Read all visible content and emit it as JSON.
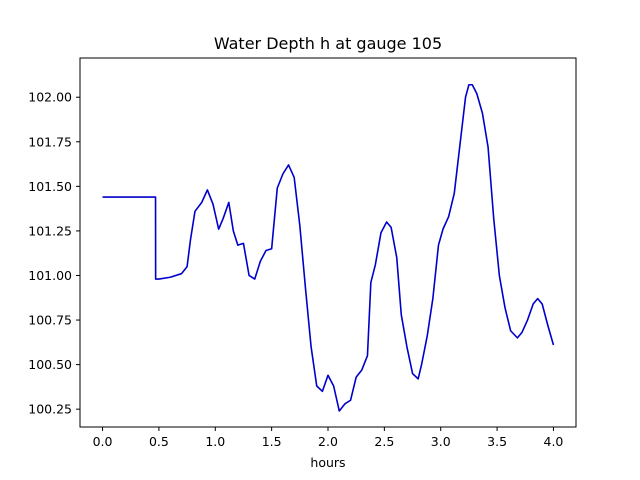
{
  "chart_data": {
    "type": "line",
    "title": "Water Depth h at gauge 105",
    "xlabel": "hours",
    "ylabel": "",
    "xlim": [
      -0.2,
      4.2
    ],
    "ylim": [
      100.15,
      102.22
    ],
    "xticks": [
      0.0,
      0.5,
      1.0,
      1.5,
      2.0,
      2.5,
      3.0,
      3.5,
      4.0
    ],
    "xtick_labels": [
      "0.0",
      "0.5",
      "1.0",
      "1.5",
      "2.0",
      "2.5",
      "3.0",
      "3.5",
      "4.0"
    ],
    "yticks": [
      100.25,
      100.5,
      100.75,
      101.0,
      101.25,
      101.5,
      101.75,
      102.0
    ],
    "ytick_labels": [
      "100.25",
      "100.50",
      "100.75",
      "101.00",
      "101.25",
      "101.50",
      "101.75",
      "102.00"
    ],
    "grid": false,
    "legend": "none",
    "series": [
      {
        "color": "#0000cc",
        "x": [
          0.0,
          0.1,
          0.2,
          0.3,
          0.4,
          0.47,
          0.471,
          0.5,
          0.6,
          0.7,
          0.75,
          0.78,
          0.82,
          0.88,
          0.93,
          0.98,
          1.03,
          1.07,
          1.12,
          1.16,
          1.2,
          1.25,
          1.3,
          1.35,
          1.4,
          1.45,
          1.5,
          1.55,
          1.6,
          1.65,
          1.7,
          1.75,
          1.8,
          1.85,
          1.9,
          1.95,
          2.0,
          2.05,
          2.1,
          2.15,
          2.2,
          2.25,
          2.3,
          2.35,
          2.38,
          2.42,
          2.47,
          2.52,
          2.56,
          2.61,
          2.65,
          2.7,
          2.75,
          2.8,
          2.83,
          2.88,
          2.93,
          2.98,
          3.02,
          3.07,
          3.12,
          3.17,
          3.22,
          3.25,
          3.28,
          3.32,
          3.37,
          3.42,
          3.47,
          3.52,
          3.57,
          3.62,
          3.68,
          3.72,
          3.77,
          3.82,
          3.86,
          3.9,
          3.95,
          4.0
        ],
        "y": [
          101.44,
          101.44,
          101.44,
          101.44,
          101.44,
          101.44,
          100.98,
          100.98,
          100.99,
          101.01,
          101.05,
          101.2,
          101.36,
          101.41,
          101.48,
          101.4,
          101.26,
          101.32,
          101.41,
          101.25,
          101.17,
          101.18,
          101.0,
          100.98,
          101.08,
          101.14,
          101.15,
          101.49,
          101.57,
          101.62,
          101.55,
          101.28,
          100.93,
          100.6,
          100.38,
          100.35,
          100.44,
          100.38,
          100.24,
          100.28,
          100.3,
          100.43,
          100.47,
          100.55,
          100.96,
          101.06,
          101.24,
          101.3,
          101.27,
          101.1,
          100.78,
          100.6,
          100.45,
          100.42,
          100.5,
          100.66,
          100.87,
          101.17,
          101.26,
          101.33,
          101.46,
          101.73,
          102.0,
          102.07,
          102.07,
          102.02,
          101.91,
          101.72,
          101.32,
          101.0,
          100.82,
          100.69,
          100.65,
          100.68,
          100.75,
          100.84,
          100.87,
          100.84,
          100.72,
          100.61
        ]
      }
    ]
  }
}
